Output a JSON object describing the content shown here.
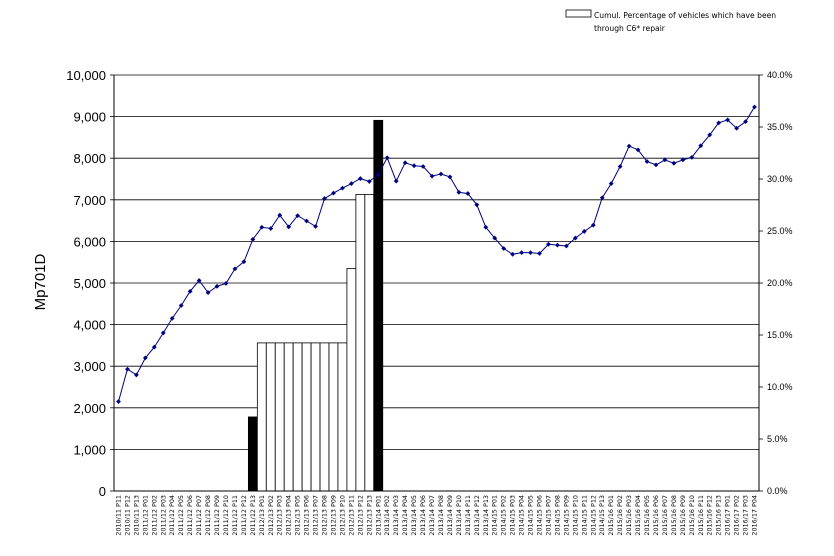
{
  "chart_data": {
    "type": "bar+line",
    "ylabel": "Mp701D",
    "ylim": [
      0,
      10000
    ],
    "y_ticks": [
      "0",
      "1,000",
      "2,000",
      "3,000",
      "4,000",
      "5,000",
      "6,000",
      "7,000",
      "8,000",
      "9,000",
      "10,000"
    ],
    "y2lim": [
      0,
      40
    ],
    "y2_ticks": [
      "0.0%",
      "5.0%",
      "10.0%",
      "15.0%",
      "20.0%",
      "25.0%",
      "30.0%",
      "35.0%",
      "40.0%"
    ],
    "grid": "horizontal",
    "legend": {
      "position": "top-right",
      "line1": "Cumul. Percentage of vehicles which have been",
      "line2": "through C6* repair"
    },
    "categories": [
      "2010/11 P11",
      "2010/11 P12",
      "2010/11 P13",
      "2011/12 P01",
      "2011/12 P02",
      "2011/12 P03",
      "2011/12 P04",
      "2011/12 P05",
      "2011/12 P06",
      "2011/12 P07",
      "2011/12 P08",
      "2011/12 P09",
      "2011/12 P10",
      "2011/12 P11",
      "2011/12 P12",
      "2011/12 P13",
      "2012/13 P01",
      "2012/13 P02",
      "2012/13 P03",
      "2012/13 P04",
      "2012/13 P05",
      "2012/13 P06",
      "2012/13 P07",
      "2012/13 P08",
      "2012/13 P09",
      "2012/13 P10",
      "2012/13 P11",
      "2012/13 P12",
      "2012/13 P13",
      "2013/14 P01",
      "2013/14 P02",
      "2013/14 P03",
      "2013/14 P04",
      "2013/14 P05",
      "2013/14 P06",
      "2013/14 P07",
      "2013/14 P08",
      "2013/14 P09",
      "2013/14 P10",
      "2013/14 P11",
      "2013/14 P12",
      "2013/14 P13",
      "2014/15 P01",
      "2014/15 P02",
      "2014/15 P03",
      "2014/15 P04",
      "2014/15 P05",
      "2014/15 P06",
      "2014/15 P07",
      "2014/15 P08",
      "2014/15 P09",
      "2014/15 P10",
      "2014/15 P11",
      "2014/15 P12",
      "2014/15 P13",
      "2015/16 P01",
      "2015/16 P02",
      "2015/16 P03",
      "2015/16 P04",
      "2015/16 P05",
      "2015/16 P06",
      "2015/16 P07",
      "2015/16 P08",
      "2015/16 P09",
      "2015/16 P10",
      "2015/16 P11",
      "2015/16 P12",
      "2015/16 P13",
      "2016/17 P01",
      "2016/17 P02",
      "2016/17 P03",
      "2016/17 P04"
    ],
    "bars": [
      {
        "index": 15,
        "value": 1780,
        "fill": "#000000"
      },
      {
        "index": 16,
        "value": 3560,
        "fill": "#ffffff"
      },
      {
        "index": 17,
        "value": 3560,
        "fill": "#ffffff"
      },
      {
        "index": 18,
        "value": 3560,
        "fill": "#ffffff"
      },
      {
        "index": 19,
        "value": 3560,
        "fill": "#ffffff"
      },
      {
        "index": 20,
        "value": 3560,
        "fill": "#ffffff"
      },
      {
        "index": 21,
        "value": 3560,
        "fill": "#ffffff"
      },
      {
        "index": 22,
        "value": 3560,
        "fill": "#ffffff"
      },
      {
        "index": 23,
        "value": 3560,
        "fill": "#ffffff"
      },
      {
        "index": 24,
        "value": 3560,
        "fill": "#ffffff"
      },
      {
        "index": 25,
        "value": 3560,
        "fill": "#ffffff"
      },
      {
        "index": 26,
        "value": 5350,
        "fill": "#ffffff"
      },
      {
        "index": 27,
        "value": 7130,
        "fill": "#ffffff"
      },
      {
        "index": 28,
        "value": 7130,
        "fill": "#ffffff"
      },
      {
        "index": 29,
        "value": 8910,
        "fill": "#000000"
      }
    ],
    "line_values": [
      2150,
      2930,
      2790,
      3200,
      3460,
      3800,
      4150,
      4460,
      4800,
      5060,
      4770,
      4920,
      4990,
      5340,
      5510,
      6050,
      6340,
      6310,
      6630,
      6350,
      6620,
      6490,
      6360,
      7030,
      7160,
      7280,
      7390,
      7510,
      7440,
      7610,
      8010,
      7450,
      7890,
      7820,
      7800,
      7570,
      7620,
      7550,
      7180,
      7150,
      6880,
      6340,
      6080,
      5830,
      5690,
      5730,
      5730,
      5710,
      5930,
      5910,
      5890,
      6080,
      6240,
      6390,
      7050,
      7390,
      7800,
      8290,
      8200,
      7920,
      7840,
      7960,
      7880,
      7960,
      8020,
      8300,
      8560,
      8850,
      8920,
      8720,
      8880,
      9230
    ],
    "colors": {
      "bar_dark": "#000000",
      "bar_light": "#ffffff",
      "line": "#00007f",
      "grid": "#000000"
    }
  }
}
